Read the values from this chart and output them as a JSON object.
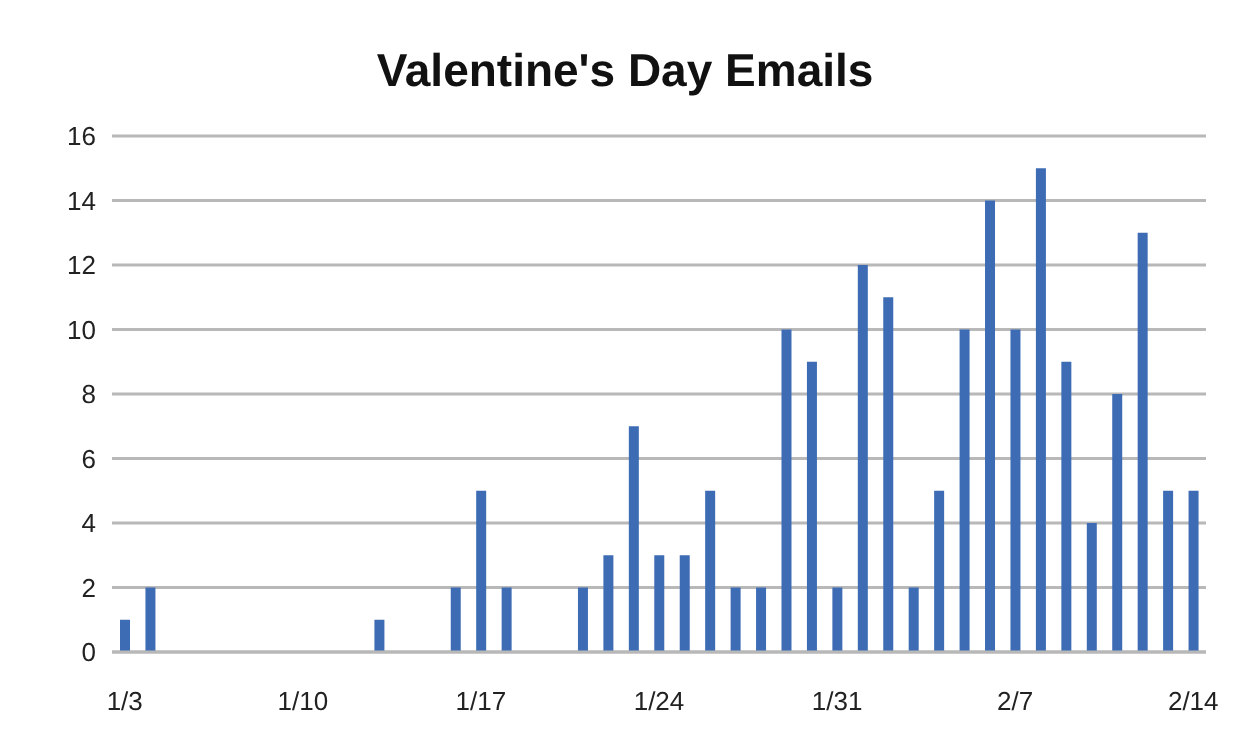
{
  "chart_data": {
    "type": "bar",
    "title": "Valentine's Day Emails",
    "categories": [
      "1/3",
      null,
      null,
      null,
      null,
      null,
      null,
      "1/10",
      null,
      null,
      null,
      null,
      null,
      null,
      "1/17",
      null,
      null,
      null,
      null,
      null,
      null,
      "1/24",
      null,
      null,
      null,
      null,
      null,
      null,
      "1/31",
      null,
      null,
      null,
      null,
      null,
      null,
      "2/7",
      null,
      null,
      null,
      null,
      null,
      null,
      "2/14"
    ],
    "values": [
      1,
      2,
      0,
      0,
      0,
      0,
      0,
      0,
      0,
      0,
      1,
      0,
      0,
      2,
      5,
      2,
      0,
      0,
      2,
      3,
      7,
      3,
      3,
      5,
      2,
      2,
      10,
      9,
      2,
      12,
      11,
      2,
      5,
      10,
      14,
      10,
      15,
      9,
      4,
      8,
      13,
      5,
      5
    ],
    "color": "#3d6cb4",
    "ylim": [
      0,
      16
    ],
    "yticks": [
      0,
      2,
      4,
      6,
      8,
      10,
      12,
      14,
      16
    ],
    "grid": "y"
  }
}
